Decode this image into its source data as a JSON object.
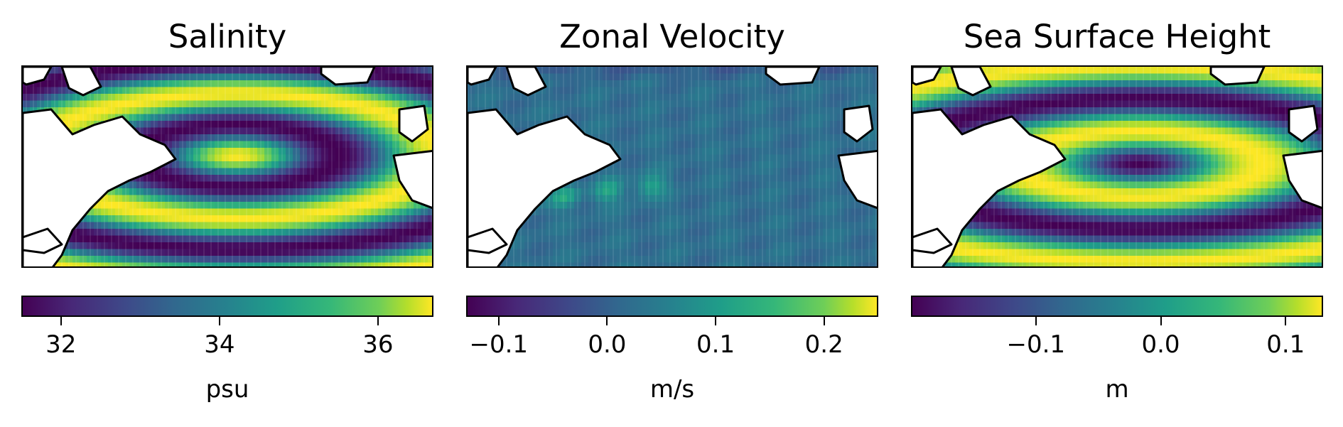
{
  "chart_data": [
    {
      "type": "heatmap",
      "title": "Salinity",
      "colormap": "viridis",
      "colorbar": {
        "label": "psu",
        "range": [
          31.5,
          36.7
        ],
        "ticks": [
          32,
          34,
          36
        ],
        "tick_labels": [
          "32",
          "34",
          "36"
        ]
      },
      "pattern": "salinity"
    },
    {
      "type": "heatmap",
      "title": "Zonal Velocity",
      "colormap": "viridis",
      "colorbar": {
        "label": "m/s",
        "range": [
          -0.13,
          0.25
        ],
        "ticks": [
          -0.1,
          0.0,
          0.1,
          0.2
        ],
        "tick_labels": [
          "−0.1",
          "0.0",
          "0.1",
          "0.2"
        ]
      },
      "pattern": "velocity"
    },
    {
      "type": "heatmap",
      "title": "Sea Surface Height",
      "colormap": "viridis",
      "colorbar": {
        "label": "m",
        "range": [
          -0.2,
          0.13
        ],
        "ticks": [
          -0.1,
          0.0,
          0.1
        ],
        "tick_labels": [
          "−0.1",
          "0.0",
          "0.1"
        ]
      },
      "pattern": "ssh"
    }
  ]
}
